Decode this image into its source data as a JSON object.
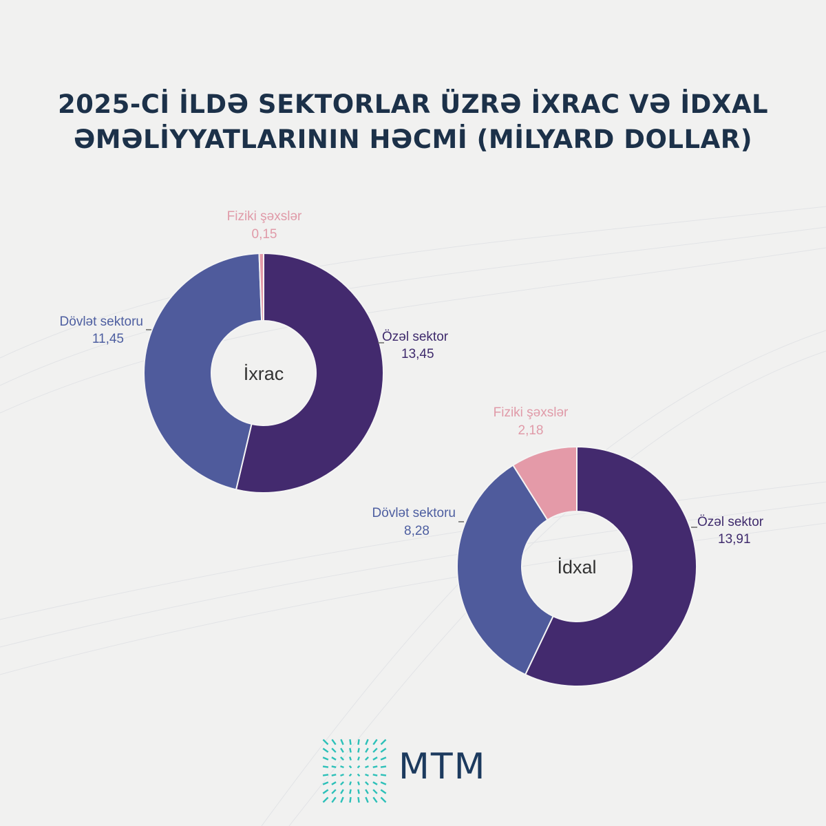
{
  "title_line1": "2025-Cİ İLDƏ SEKTORLAR ÜZRƏ İXRAC VƏ İDXAL",
  "title_line2": "ƏMƏLİYYATLARININ HƏCMİ (MİLYARD DOLLAR)",
  "brand": "MTM",
  "colors": {
    "title": "#1c3149",
    "private": "#432a6e",
    "state": "#4f5b9c",
    "individuals": "#e49aa8",
    "individuals_label": "#e09aa8",
    "private_label": "#3e2a6c",
    "state_label": "#4d5ea0",
    "logo": "#2cc0b8",
    "brand": "#1c3a5e"
  },
  "chart_data": [
    {
      "type": "donut",
      "center_label": "İxrac",
      "slices": [
        {
          "name": "Özəl sektor",
          "value": 13.45,
          "value_label": "13,45",
          "color": "#432a6e"
        },
        {
          "name": "Dövlət sektoru",
          "value": 11.45,
          "value_label": "11,45",
          "color": "#4f5b9c"
        },
        {
          "name": "Fiziki şəxslər",
          "value": 0.15,
          "value_label": "0,15",
          "color": "#e49aa8"
        }
      ]
    },
    {
      "type": "donut",
      "center_label": "İdxal",
      "slices": [
        {
          "name": "Özəl sektor",
          "value": 13.91,
          "value_label": "13,91",
          "color": "#432a6e"
        },
        {
          "name": "Dövlət sektoru",
          "value": 8.28,
          "value_label": "8,28",
          "color": "#4f5b9c"
        },
        {
          "name": "Fiziki şəxslər",
          "value": 2.18,
          "value_label": "2,18",
          "color": "#e49aa8"
        }
      ]
    }
  ]
}
